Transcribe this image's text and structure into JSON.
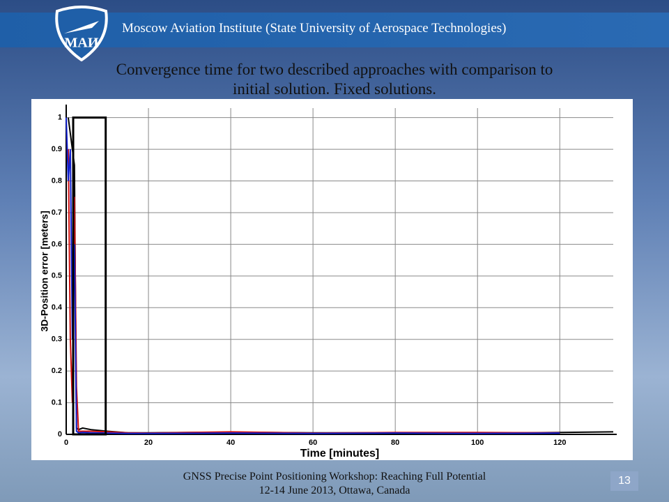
{
  "header": {
    "text": "Moscow Aviation Institute (State University of Aerospace Technologies)",
    "logo_text": "МАИ"
  },
  "title": {
    "line1": "Convergence time for two described approaches with comparison to",
    "line2": "initial solution. Fixed solutions."
  },
  "chart_data": {
    "type": "line",
    "x_label": "Time [minutes]",
    "y_label": "3D-Position error [meters]",
    "x": [
      0,
      0.5,
      1,
      1.5,
      2,
      2.5,
      3,
      4,
      6,
      10,
      15,
      20,
      40,
      60,
      80,
      100,
      120,
      133
    ],
    "series": [
      {
        "color": "#000000",
        "values": [
          null,
          1,
          0.95,
          0.9,
          0.85,
          0.02,
          0.015,
          0.02,
          0.015,
          0.01,
          0.005,
          0.005,
          0.007,
          0.005,
          0.005,
          0.004,
          0.006,
          0.008
        ]
      },
      {
        "color": "#d01010",
        "values": [
          null,
          0.9,
          0.3,
          0.1,
          0.75,
          0.15,
          0.01,
          0.01,
          0.01,
          0.008,
          0.005,
          0.004,
          0.008,
          0.004,
          0.006,
          0.006,
          0.005,
          null
        ]
      },
      {
        "color": "#1020d0",
        "values": [
          1,
          0.8,
          0.9,
          0.3,
          0.6,
          0.01,
          0.005,
          0.006,
          0.005,
          0.004,
          0.003,
          0.003,
          0.004,
          0.003,
          0.004,
          0.003,
          0.004,
          null
        ]
      }
    ],
    "highlight_box": {
      "x": [
        1.7,
        9.6
      ],
      "y": [
        0,
        1
      ]
    },
    "xlim": [
      0,
      133
    ],
    "ylim": [
      0,
      1.03
    ],
    "xticks": [
      0,
      20,
      40,
      60,
      80,
      100,
      120
    ],
    "yticks": [
      0,
      0.1,
      0.2,
      0.3,
      0.4,
      0.5,
      0.6,
      0.7,
      0.8,
      0.9,
      1
    ],
    "grid": true
  },
  "footer": {
    "line1": "GNSS Precise Point Positioning Workshop: Reaching Full Potential",
    "line2": "12-14 June 2013, Ottawa, Canada"
  },
  "page_number": "13"
}
